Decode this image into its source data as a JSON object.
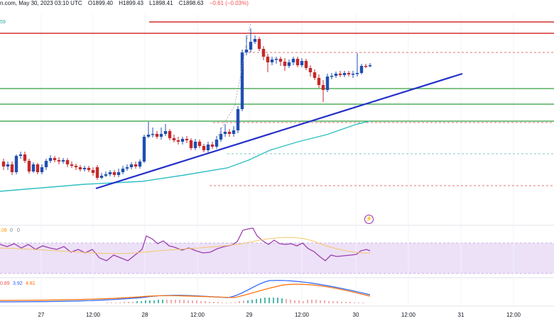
{
  "header": {
    "site_fragment": "n.com, May 30, 2023 03:10 UTC",
    "open": "O1899.40",
    "high": "H1899.43",
    "low": "L1898.41",
    "close": "C1898.63",
    "change": "−0.61 (−0.03%)",
    "sub_value": "59"
  },
  "indicators": {
    "rsi_label": ".08",
    "rsi_v2": "0",
    "rsi_v3": "0",
    "macd_v1": "0.89",
    "macd_v2": "3.92",
    "macd_v3": "4.81"
  },
  "x_ticks": [
    "27",
    "12:00",
    "28",
    "12:00",
    "29",
    "12:00",
    "30",
    "12:00",
    "31",
    "12:00"
  ],
  "colors": {
    "up": "#1f4fb4",
    "down": "#c62828",
    "trendline": "#2430c9",
    "ma": "#30bfc3",
    "resistance": "#d32f2f",
    "support": "#2e9e3a",
    "rsi": "#9c3fb0",
    "rsi_band": "#ede1f7",
    "macd_line": "#2962ff",
    "macd_signal": "#ff6d00"
  },
  "icons": [
    "lightning-icon"
  ]
}
